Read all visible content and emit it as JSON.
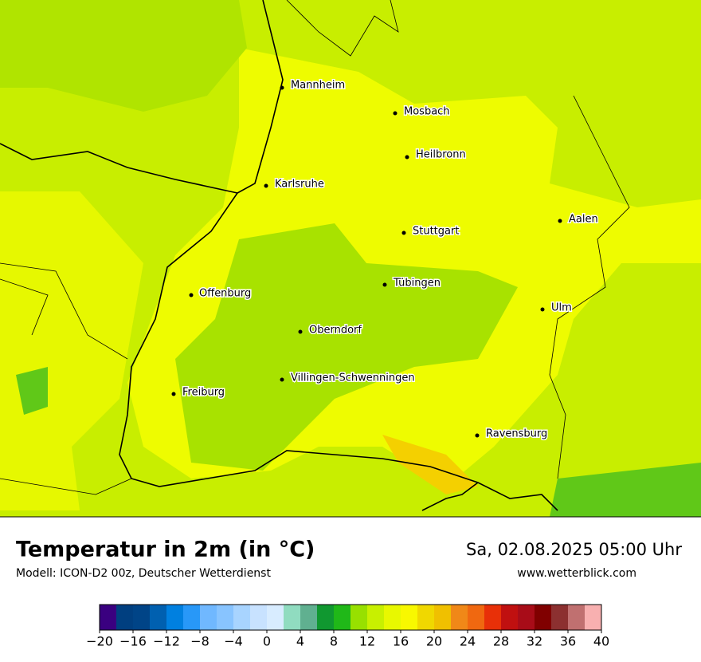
{
  "map": {
    "cities": [
      "Mannheim",
      "Mosbach",
      "Heilbronn",
      "Karlsruhe",
      "Aalen",
      "Stuttgart",
      "Tübingen",
      "Offenburg",
      "Ulm",
      "Oberndorf",
      "Villingen-Schwenningen",
      "Freiburg",
      "Ravensburg"
    ]
  },
  "footer": {
    "title": "Temperatur in 2m (in °C)",
    "subtitle": "Modell: ICON-D2 00z, Deutscher Wetterdienst",
    "date": "Sa, 02.08.2025 05:00 Uhr",
    "website": "www.wetterblick.com"
  },
  "legend": {
    "lim": [
      -20,
      40
    ],
    "colors": [
      "#3a0080",
      "#003f80",
      "#004487",
      "#0060b0",
      "#0080e0",
      "#2898f8",
      "#70b8ff",
      "#88c4ff",
      "#a8d4ff",
      "#c8e2ff",
      "#d8ecff",
      "#90dcc0",
      "#60b090",
      "#109830",
      "#20b818",
      "#98e000",
      "#c8f000",
      "#e8f800",
      "#f8f800",
      "#f0d800",
      "#f0c000",
      "#f08818",
      "#f06810",
      "#e83008",
      "#c01010",
      "#a80c18",
      "#800000",
      "#8c3030",
      "#c07070",
      "#f8b0b0"
    ],
    "ticks": [
      {
        "value": -20,
        "label": "−20"
      },
      {
        "value": -16,
        "label": "−16"
      },
      {
        "value": -12,
        "label": "−12"
      },
      {
        "value": -8,
        "label": "−8"
      },
      {
        "value": -4,
        "label": "−4"
      },
      0,
      4,
      8,
      12,
      16,
      20,
      24,
      28,
      32,
      36,
      40
    ]
  }
}
